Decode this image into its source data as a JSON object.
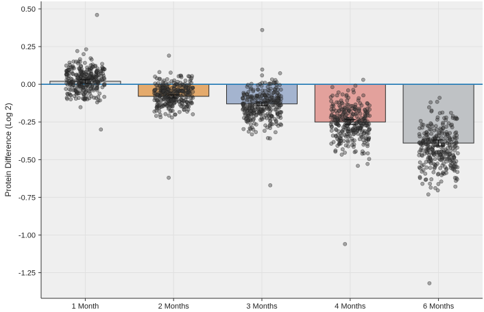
{
  "chart_data": {
    "type": "bar",
    "title": "",
    "xlabel": "",
    "ylabel": "Protein Difference (Log 2)",
    "ylim": [
      -1.42,
      0.55
    ],
    "yticks": [
      0.5,
      0.25,
      0.0,
      -0.25,
      -0.5,
      -0.75,
      -1.0,
      -1.25
    ],
    "ytick_labels": [
      "0.50",
      "0.25",
      "0.00",
      "-0.25",
      "-0.50",
      "-0.75",
      "-1.00",
      "-1.25"
    ],
    "grid": true,
    "reference_line": {
      "value": 0.0,
      "color": "#1f77b4"
    },
    "categories": [
      "1 Month",
      "2 Months",
      "3 Months",
      "4 Months",
      "6 Months"
    ],
    "values": [
      0.02,
      -0.08,
      -0.13,
      -0.25,
      -0.39
    ],
    "error": [
      0.012,
      0.01,
      0.012,
      0.016,
      0.02
    ],
    "colors": [
      "#d9d9d9",
      "#e4aa6c",
      "#a4b4cf",
      "#e3a19c",
      "#bfc2c5"
    ],
    "points": {
      "count_per_group": 300,
      "color": "#3a3a3a",
      "spread": [
        {
          "center": 0.03,
          "sd": 0.13,
          "min": -0.3,
          "max": 0.46
        },
        {
          "center": -0.07,
          "sd": 0.12,
          "min": -0.62,
          "max": 0.19
        },
        {
          "center": -0.13,
          "sd": 0.17,
          "min": -0.67,
          "max": 0.36
        },
        {
          "center": -0.26,
          "sd": 0.2,
          "min": -1.06,
          "max": 0.03
        },
        {
          "center": -0.42,
          "sd": 0.24,
          "min": -1.32,
          "max": -0.09
        }
      ]
    }
  }
}
